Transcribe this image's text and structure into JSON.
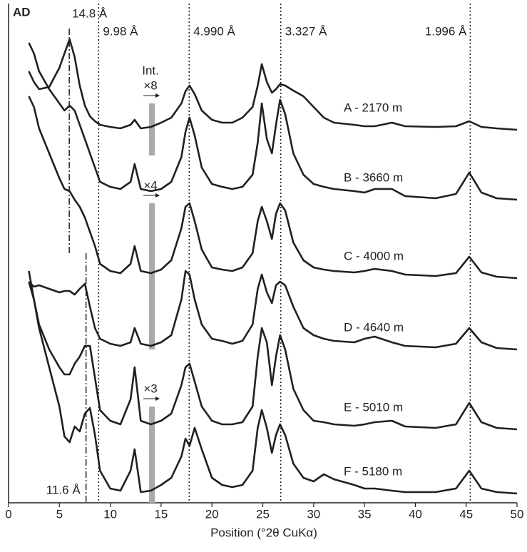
{
  "chart_data": {
    "type": "line",
    "panel_label": "AD",
    "x_label": "Position (°2θ CuKα)",
    "xlim": [
      0,
      50
    ],
    "xticks": [
      0,
      5,
      10,
      15,
      20,
      25,
      30,
      35,
      40,
      45,
      50
    ],
    "ylim": [
      0,
      700
    ],
    "x": [
      2,
      2.5,
      3,
      4,
      5,
      5.5,
      6,
      6.5,
      7,
      7.5,
      8,
      8.5,
      9,
      10,
      11,
      12,
      12.4,
      13,
      14,
      15,
      16,
      17,
      17.4,
      17.8,
      18.3,
      19,
      20,
      21,
      22,
      23,
      24,
      24.5,
      24.9,
      25.4,
      25.9,
      26.3,
      26.7,
      27.2,
      28,
      29,
      30,
      31,
      32,
      34,
      35,
      36,
      37.7,
      39,
      42,
      44,
      45.3,
      46.5,
      48,
      50
    ],
    "series": [
      {
        "name": "A - 2170 m",
        "color": "#231f20",
        "values": [
          605,
          590,
          580,
          583,
          610,
          630,
          650,
          625,
          585,
          557,
          542,
          535,
          530,
          527,
          525,
          530,
          537,
          525,
          527,
          533,
          540,
          560,
          577,
          585,
          573,
          550,
          537,
          533,
          533,
          540,
          555,
          585,
          615,
          590,
          575,
          580,
          587,
          585,
          578,
          570,
          555,
          540,
          533,
          530,
          528,
          528,
          533,
          528,
          527,
          528,
          535,
          527,
          525,
          523
        ]
      },
      {
        "name": "B - 3660 m",
        "color": "#231f20",
        "values": [
          645,
          630,
          605,
          580,
          560,
          550,
          557,
          550,
          530,
          510,
          490,
          470,
          450,
          443,
          440,
          450,
          475,
          440,
          437,
          440,
          450,
          485,
          520,
          540,
          515,
          470,
          447,
          443,
          440,
          443,
          460,
          505,
          560,
          510,
          490,
          530,
          565,
          545,
          490,
          460,
          447,
          443,
          440,
          437,
          435,
          440,
          440,
          430,
          427,
          433,
          463,
          435,
          427,
          425
        ]
      },
      {
        "name": "C - 4000 m",
        "color": "#231f20",
        "values": [
          570,
          555,
          525,
          490,
          455,
          440,
          437,
          425,
          415,
          400,
          380,
          360,
          335,
          325,
          322,
          335,
          360,
          325,
          322,
          327,
          340,
          385,
          415,
          420,
          395,
          355,
          330,
          327,
          325,
          330,
          350,
          395,
          415,
          395,
          370,
          405,
          420,
          410,
          365,
          340,
          330,
          327,
          325,
          323,
          325,
          328,
          325,
          320,
          318,
          322,
          345,
          323,
          317,
          315
        ]
      },
      {
        "name": "D - 4640 m",
        "color": "#231f20",
        "values": [
          310,
          303,
          305,
          300,
          295,
          297,
          297,
          292,
          300,
          307,
          275,
          245,
          230,
          223,
          220,
          225,
          245,
          223,
          220,
          225,
          235,
          285,
          325,
          320,
          285,
          250,
          230,
          227,
          223,
          227,
          250,
          300,
          320,
          295,
          280,
          305,
          310,
          305,
          275,
          245,
          235,
          230,
          227,
          225,
          230,
          233,
          225,
          220,
          218,
          223,
          245,
          225,
          217,
          215
        ]
      },
      {
        "name": "E - 5010 m",
        "color": "#231f20",
        "values": [
          325,
          285,
          250,
          215,
          190,
          180,
          180,
          195,
          205,
          220,
          220,
          175,
          130,
          115,
          110,
          145,
          190,
          115,
          110,
          115,
          125,
          165,
          190,
          195,
          170,
          135,
          115,
          110,
          110,
          113,
          135,
          205,
          245,
          225,
          165,
          205,
          235,
          215,
          160,
          130,
          115,
          113,
          110,
          108,
          110,
          113,
          115,
          107,
          105,
          110,
          140,
          113,
          105,
          103
        ]
      },
      {
        "name": "F - 5180 m",
        "color": "#231f20",
        "values": [
          310,
          285,
          245,
          190,
          135,
          93,
          85,
          107,
          100,
          125,
          133,
          95,
          45,
          20,
          17,
          45,
          75,
          15,
          17,
          25,
          35,
          65,
          90,
          80,
          105,
          75,
          35,
          25,
          22,
          25,
          45,
          105,
          130,
          105,
          70,
          95,
          110,
          95,
          55,
          35,
          30,
          40,
          33,
          25,
          20,
          20,
          17,
          15,
          15,
          20,
          45,
          20,
          15,
          13
        ]
      }
    ],
    "reference_lines": [
      {
        "x": 5.97,
        "label": "14.8 Å",
        "style": "dashdot",
        "yrange": [
          350,
          665
        ]
      },
      {
        "x": 7.62,
        "label": "11.6 Å",
        "style": "dashdot",
        "yrange": [
          0,
          350
        ]
      },
      {
        "x": 8.86,
        "label": "9.98 Å",
        "style": "dotted",
        "yrange": [
          0,
          700
        ]
      },
      {
        "x": 17.76,
        "label": "4.990 Å",
        "style": "dotted",
        "yrange": [
          0,
          700
        ]
      },
      {
        "x": 26.77,
        "label": "3.327 Å",
        "style": "dotted",
        "yrange": [
          0,
          700
        ]
      },
      {
        "x": 45.4,
        "label": "1.996 Å",
        "style": "dotted",
        "yrange": [
          0,
          700
        ]
      }
    ],
    "intensity_label": "Int.",
    "scale_bars": [
      {
        "label": "×8",
        "x": 14.1,
        "yrange": [
          487,
          560
        ]
      },
      {
        "label": "×4",
        "x": 14.1,
        "yrange": [
          215,
          420
        ]
      },
      {
        "label": "×3",
        "x": 14.1,
        "yrange": [
          0,
          135
        ]
      }
    ]
  }
}
